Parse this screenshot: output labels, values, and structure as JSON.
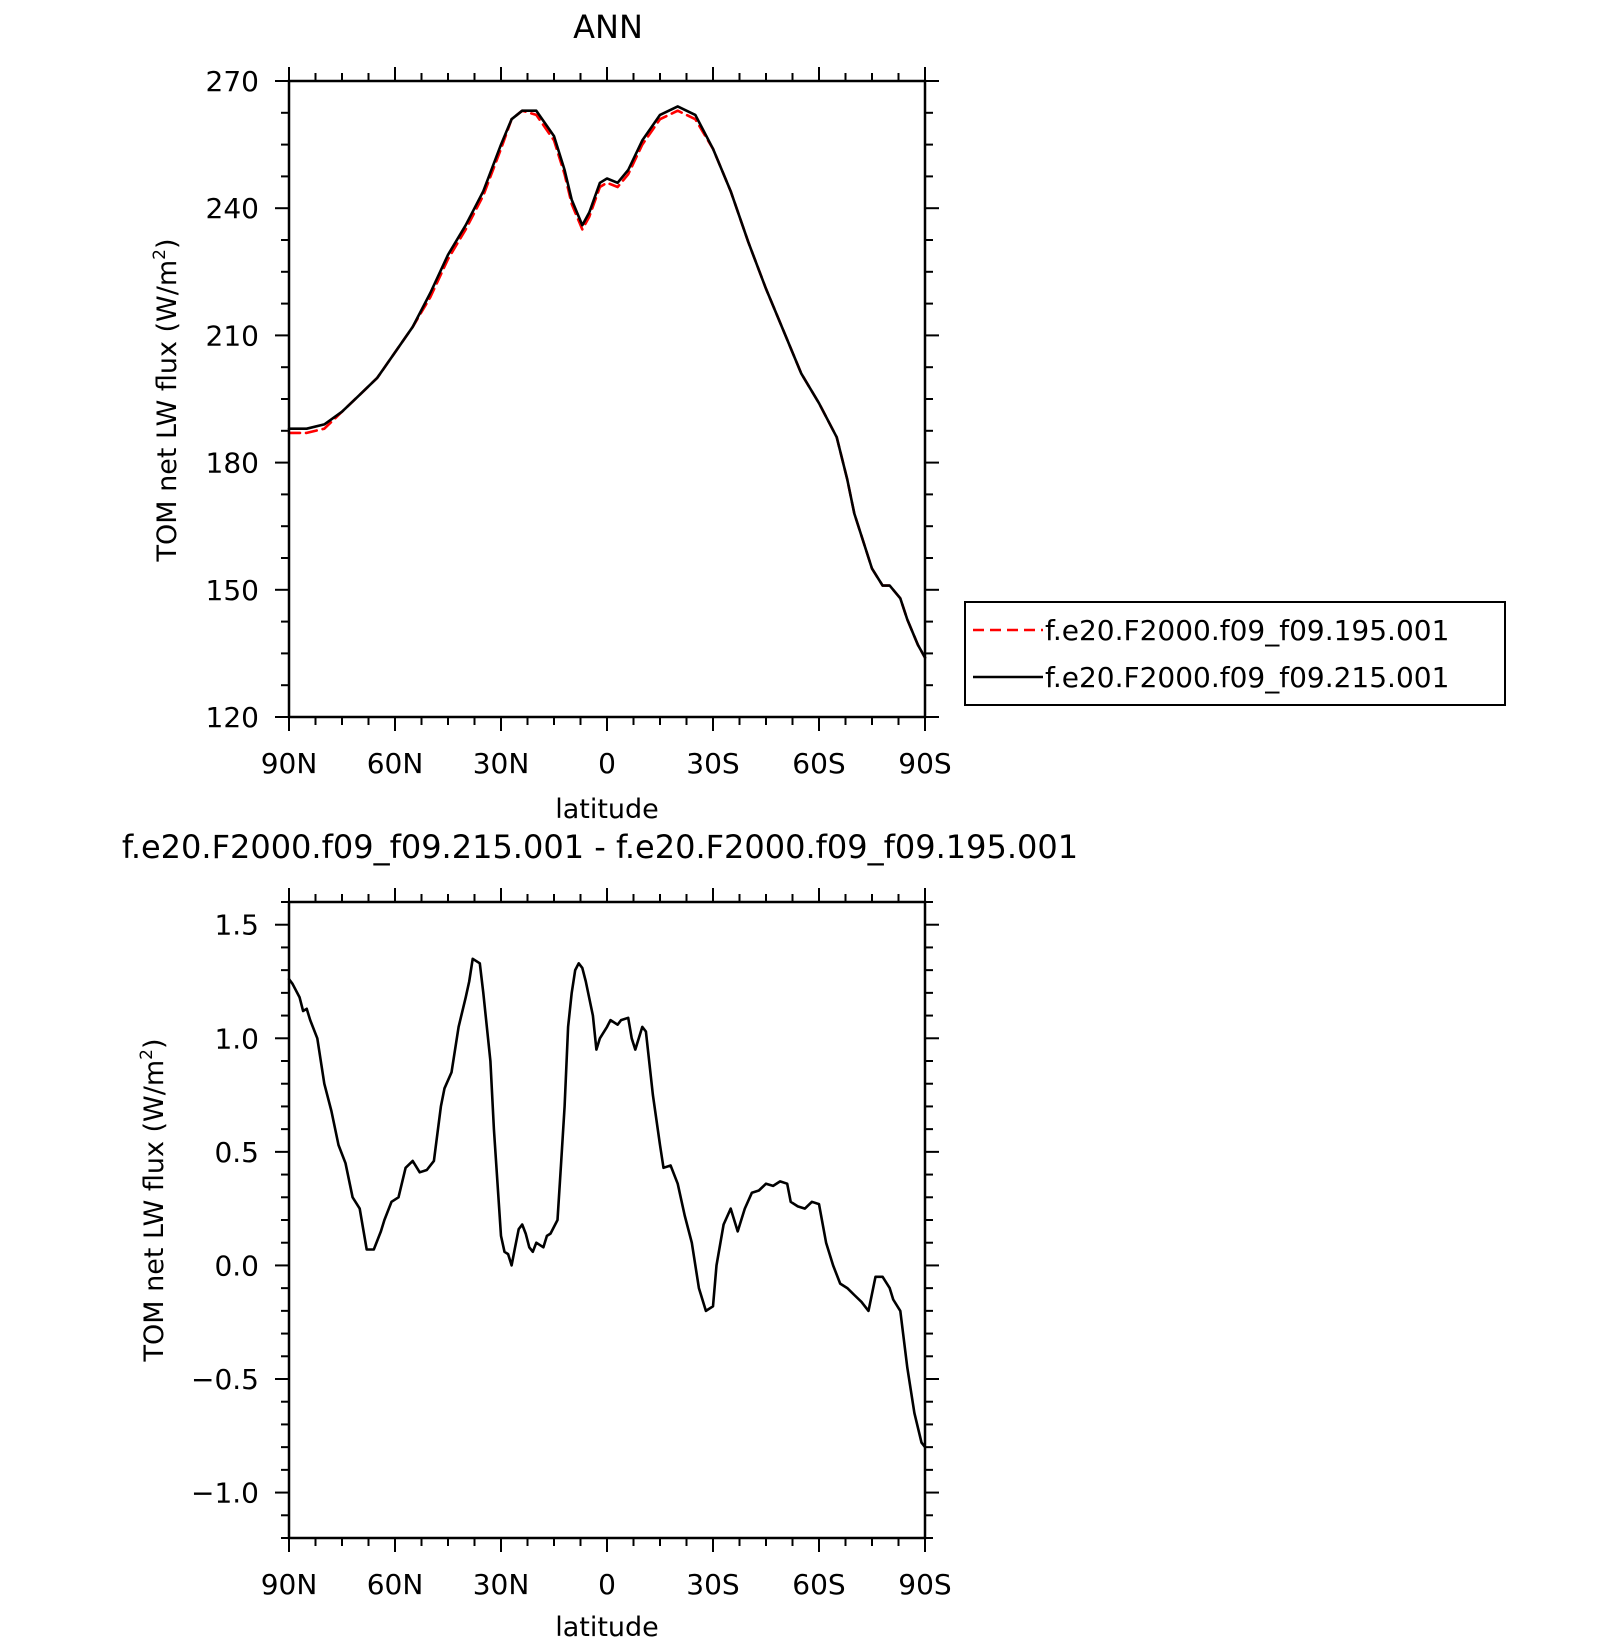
{
  "chart_data": [
    {
      "type": "line",
      "title": "ANN",
      "xlabel": "latitude",
      "ylabel_main": "TOM net LW flux (W/m",
      "ylabel_sup": "2",
      "ylabel_close": ")",
      "xlim": [
        90,
        -90
      ],
      "ylim": [
        120,
        270
      ],
      "x_ticks": [
        {
          "value": 90,
          "label": "90N"
        },
        {
          "value": 60,
          "label": "60N"
        },
        {
          "value": 30,
          "label": "30N"
        },
        {
          "value": 0,
          "label": "0"
        },
        {
          "value": -30,
          "label": "30S"
        },
        {
          "value": -60,
          "label": "60S"
        },
        {
          "value": -90,
          "label": "90S"
        }
      ],
      "y_ticks": [
        {
          "value": 270,
          "label": "270"
        },
        {
          "value": 240,
          "label": "240"
        },
        {
          "value": 210,
          "label": "210"
        },
        {
          "value": 180,
          "label": "180"
        },
        {
          "value": 150,
          "label": "150"
        },
        {
          "value": 120,
          "label": "120"
        }
      ],
      "legend_position": "right",
      "series": [
        {
          "name": "f.e20.F2000.f09_f09.195.001",
          "color": "#ff0000",
          "dash": "dashed",
          "x": [
            90,
            85,
            80,
            75,
            70,
            65,
            60,
            55,
            50,
            45,
            40,
            35,
            30,
            27,
            24,
            20,
            15,
            12,
            10,
            7,
            5,
            2,
            0,
            -3,
            -6,
            -10,
            -15,
            -20,
            -25,
            -30,
            -35,
            -40,
            -45,
            -50,
            -55,
            -60,
            -65,
            -68,
            -70,
            -75,
            -78,
            -80,
            -83,
            -85,
            -88,
            -90
          ],
          "y": [
            187,
            187,
            188,
            192,
            196,
            200,
            206,
            212,
            219,
            228,
            235,
            243,
            254,
            261,
            263,
            262,
            256,
            248,
            241,
            235,
            238,
            245,
            246,
            245,
            248,
            255,
            261,
            263,
            261,
            254,
            244,
            232,
            221,
            211,
            201,
            194,
            186,
            176,
            168,
            155,
            151,
            151,
            148,
            143,
            137,
            134
          ]
        },
        {
          "name": "f.e20.F2000.f09_f09.215.001",
          "color": "#000000",
          "dash": "solid",
          "x": [
            90,
            85,
            80,
            75,
            70,
            65,
            60,
            55,
            50,
            45,
            40,
            35,
            30,
            27,
            24,
            20,
            15,
            12,
            10,
            7,
            5,
            2,
            0,
            -3,
            -6,
            -10,
            -15,
            -20,
            -25,
            -30,
            -35,
            -40,
            -45,
            -50,
            -55,
            -60,
            -65,
            -68,
            -70,
            -75,
            -78,
            -80,
            -83,
            -85,
            -88,
            -90
          ],
          "y": [
            188,
            188,
            189,
            192,
            196,
            200,
            206,
            212,
            220,
            229,
            236,
            244,
            255,
            261,
            263,
            263,
            257,
            249,
            242,
            236,
            239,
            246,
            247,
            246,
            249,
            256,
            262,
            264,
            262,
            254,
            244,
            232,
            221,
            211,
            201,
            194,
            186,
            176,
            168,
            155,
            151,
            151,
            148,
            143,
            137,
            134
          ]
        }
      ]
    },
    {
      "type": "line",
      "title": "f.e20.F2000.f09_f09.215.001 - f.e20.F2000.f09_f09.195.001",
      "xlabel": "latitude",
      "ylabel_main": "TOM net LW flux (W/m",
      "ylabel_sup": "2",
      "ylabel_close": ")",
      "xlim": [
        90,
        -90
      ],
      "ylim": [
        -1.2,
        1.6
      ],
      "x_ticks": [
        {
          "value": 90,
          "label": "90N"
        },
        {
          "value": 60,
          "label": "60N"
        },
        {
          "value": 30,
          "label": "30N"
        },
        {
          "value": 0,
          "label": "0"
        },
        {
          "value": -30,
          "label": "30S"
        },
        {
          "value": -60,
          "label": "60S"
        },
        {
          "value": -90,
          "label": "90S"
        }
      ],
      "y_ticks": [
        {
          "value": 1.5,
          "label": "1.5"
        },
        {
          "value": 1.0,
          "label": "1.0"
        },
        {
          "value": 0.5,
          "label": "0.5"
        },
        {
          "value": 0.0,
          "label": "0.0"
        },
        {
          "value": -0.5,
          "label": "−0.5"
        },
        {
          "value": -1.0,
          "label": "−1.0"
        }
      ],
      "series": [
        {
          "color": "#000000",
          "dash": "solid",
          "x": [
            90,
            89,
            87,
            86,
            85,
            84,
            82,
            80,
            78,
            76,
            74,
            72,
            70,
            68,
            66,
            64,
            63,
            61,
            59,
            57,
            55,
            53,
            51,
            49,
            47,
            46,
            44,
            42,
            40,
            39,
            38,
            36,
            35,
            33,
            32,
            30,
            29,
            28,
            27,
            26,
            25,
            24,
            23,
            22,
            21,
            20,
            18,
            17,
            16,
            14,
            13,
            12,
            11,
            10,
            9,
            8,
            7,
            6,
            4,
            3,
            2,
            0,
            -1,
            -3,
            -4,
            -6,
            -7,
            -8,
            -10,
            -11,
            -13,
            -15,
            -16,
            -18,
            -20,
            -22,
            -24,
            -26,
            -28,
            -30,
            -31,
            -33,
            -35,
            -37,
            -39,
            -41,
            -43,
            -45,
            -47,
            -49,
            -51,
            -52,
            -54,
            -56,
            -58,
            -60,
            -62,
            -64,
            -66,
            -68,
            -70,
            -72,
            -74,
            -76,
            -78,
            -80,
            -81,
            -83,
            -85,
            -87,
            -89,
            -90
          ],
          "y": [
            1.26,
            1.24,
            1.18,
            1.12,
            1.13,
            1.08,
            1.0,
            0.8,
            0.68,
            0.53,
            0.45,
            0.3,
            0.25,
            0.07,
            0.07,
            0.15,
            0.2,
            0.28,
            0.3,
            0.43,
            0.46,
            0.41,
            0.42,
            0.46,
            0.7,
            0.78,
            0.85,
            1.05,
            1.18,
            1.25,
            1.35,
            1.33,
            1.2,
            0.9,
            0.6,
            0.13,
            0.06,
            0.05,
            0.0,
            0.08,
            0.16,
            0.18,
            0.14,
            0.08,
            0.06,
            0.1,
            0.08,
            0.13,
            0.14,
            0.2,
            0.45,
            0.7,
            1.05,
            1.2,
            1.3,
            1.33,
            1.31,
            1.25,
            1.1,
            0.95,
            1.0,
            1.05,
            1.08,
            1.06,
            1.08,
            1.09,
            1.0,
            0.95,
            1.05,
            1.03,
            0.75,
            0.53,
            0.43,
            0.44,
            0.36,
            0.22,
            0.1,
            -0.1,
            -0.2,
            -0.18,
            0.0,
            0.18,
            0.25,
            0.15,
            0.25,
            0.32,
            0.33,
            0.36,
            0.35,
            0.37,
            0.36,
            0.28,
            0.26,
            0.25,
            0.28,
            0.27,
            0.1,
            0.0,
            -0.08,
            -0.1,
            -0.13,
            -0.16,
            -0.2,
            -0.05,
            -0.05,
            -0.1,
            -0.15,
            -0.2,
            -0.45,
            -0.65,
            -0.78,
            -0.8
          ]
        }
      ]
    }
  ]
}
